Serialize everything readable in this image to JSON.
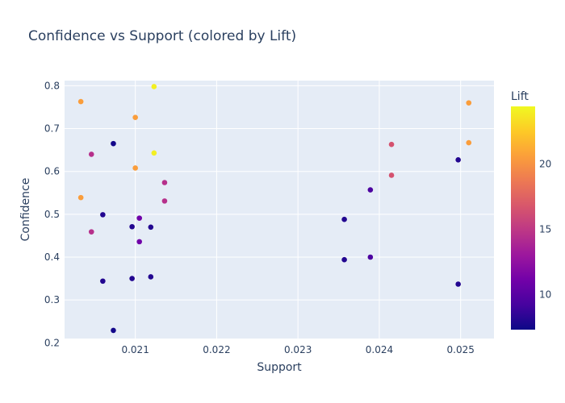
{
  "chart_data": {
    "type": "scatter",
    "title": "Confidence vs Support (colored by Lift)",
    "xlabel": "Support",
    "ylabel": "Confidence",
    "xlim": [
      0.02013,
      0.02541
    ],
    "ylim": [
      0.21,
      0.812
    ],
    "x_ticks": [
      0.021,
      0.022,
      0.023,
      0.024,
      0.025
    ],
    "x_tick_labels": [
      "0.021",
      "0.022",
      "0.023",
      "0.024",
      "0.025"
    ],
    "y_ticks": [
      0.2,
      0.3,
      0.4,
      0.5,
      0.6,
      0.7,
      0.8
    ],
    "y_tick_labels": [
      "0.2",
      "0.3",
      "0.4",
      "0.5",
      "0.6",
      "0.7",
      "0.8"
    ],
    "grid": true,
    "colorbar": {
      "title": "Lift",
      "min": 7.3,
      "max": 24.4,
      "ticks": [
        10,
        15,
        20
      ],
      "tick_labels": [
        "10",
        "15",
        "20"
      ],
      "colors": [
        "#0d0887",
        "#46039f",
        "#7201a8",
        "#9c179e",
        "#bd3786",
        "#d8576b",
        "#ed7953",
        "#fb9f3a",
        "#fdca26",
        "#f0f921"
      ]
    },
    "points": [
      {
        "x": 0.02033,
        "y": 0.763,
        "lift": 20.5
      },
      {
        "x": 0.02033,
        "y": 0.539,
        "lift": 20.5
      },
      {
        "x": 0.02046,
        "y": 0.64,
        "lift": 14.5
      },
      {
        "x": 0.02046,
        "y": 0.459,
        "lift": 14.5
      },
      {
        "x": 0.0206,
        "y": 0.499,
        "lift": 8.0
      },
      {
        "x": 0.0206,
        "y": 0.344,
        "lift": 8.0
      },
      {
        "x": 0.02073,
        "y": 0.665,
        "lift": 7.5
      },
      {
        "x": 0.02073,
        "y": 0.229,
        "lift": 7.5
      },
      {
        "x": 0.02096,
        "y": 0.471,
        "lift": 8.0
      },
      {
        "x": 0.02096,
        "y": 0.35,
        "lift": 8.0
      },
      {
        "x": 0.021,
        "y": 0.726,
        "lift": 20.5
      },
      {
        "x": 0.021,
        "y": 0.608,
        "lift": 20.5
      },
      {
        "x": 0.02105,
        "y": 0.491,
        "lift": 11.0
      },
      {
        "x": 0.02105,
        "y": 0.436,
        "lift": 11.0
      },
      {
        "x": 0.02119,
        "y": 0.47,
        "lift": 8.0
      },
      {
        "x": 0.02119,
        "y": 0.354,
        "lift": 8.0
      },
      {
        "x": 0.02123,
        "y": 0.798,
        "lift": 24.0
      },
      {
        "x": 0.02123,
        "y": 0.643,
        "lift": 24.0
      },
      {
        "x": 0.02136,
        "y": 0.574,
        "lift": 14.5
      },
      {
        "x": 0.02136,
        "y": 0.531,
        "lift": 14.5
      },
      {
        "x": 0.02357,
        "y": 0.488,
        "lift": 8.0
      },
      {
        "x": 0.02357,
        "y": 0.394,
        "lift": 8.0
      },
      {
        "x": 0.02389,
        "y": 0.557,
        "lift": 9.5
      },
      {
        "x": 0.02389,
        "y": 0.4,
        "lift": 9.5
      },
      {
        "x": 0.02415,
        "y": 0.663,
        "lift": 16.5
      },
      {
        "x": 0.02415,
        "y": 0.591,
        "lift": 16.5
      },
      {
        "x": 0.02497,
        "y": 0.627,
        "lift": 8.0
      },
      {
        "x": 0.02497,
        "y": 0.337,
        "lift": 8.0
      },
      {
        "x": 0.0251,
        "y": 0.76,
        "lift": 20.5
      },
      {
        "x": 0.0251,
        "y": 0.667,
        "lift": 20.5
      }
    ]
  }
}
